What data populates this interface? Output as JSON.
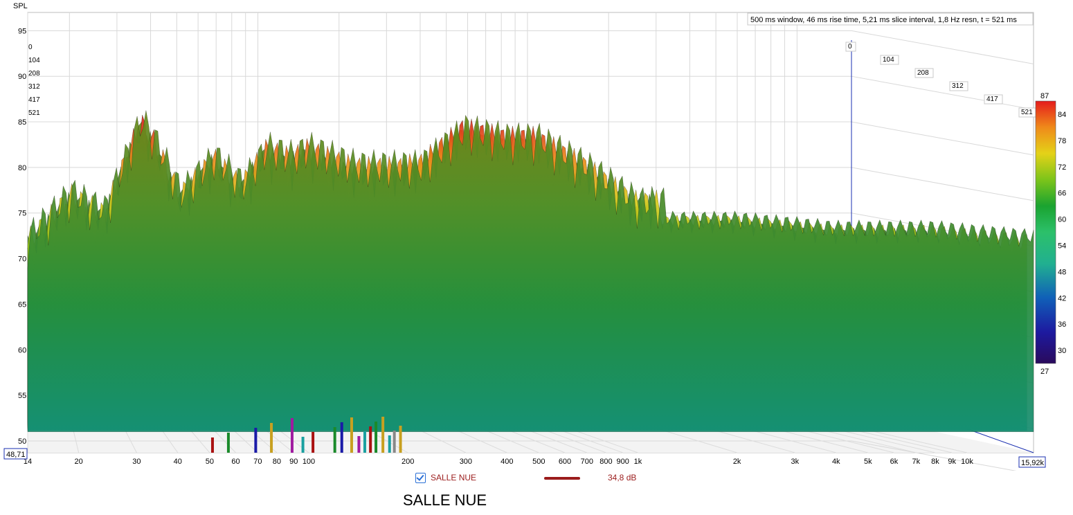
{
  "chart_data": {
    "type": "waterfall",
    "ylabel": "SPL",
    "info": "500 ms window, 46 ms rise time, 5,21 ms slice interval, 1,8 Hz resn, t = 521 ms",
    "y_ticks": [
      50,
      55,
      60,
      65,
      70,
      75,
      80,
      85,
      90,
      95
    ],
    "x_ticks": [
      {
        "f": 14,
        "label": "14"
      },
      {
        "f": 20,
        "label": "20"
      },
      {
        "f": 30,
        "label": "30"
      },
      {
        "f": 40,
        "label": "40"
      },
      {
        "f": 50,
        "label": "50"
      },
      {
        "f": 60,
        "label": "60"
      },
      {
        "f": 70,
        "label": "70"
      },
      {
        "f": 80,
        "label": "80"
      },
      {
        "f": 90,
        "label": "90"
      },
      {
        "f": 100,
        "label": "100"
      },
      {
        "f": 200,
        "label": "200"
      },
      {
        "f": 300,
        "label": "300"
      },
      {
        "f": 400,
        "label": "400"
      },
      {
        "f": 500,
        "label": "500"
      },
      {
        "f": 600,
        "label": "600"
      },
      {
        "f": 700,
        "label": "700"
      },
      {
        "f": 800,
        "label": "800"
      },
      {
        "f": 900,
        "label": "900"
      },
      {
        "f": 1000,
        "label": "1k"
      },
      {
        "f": 2000,
        "label": "2k"
      },
      {
        "f": 3000,
        "label": "3k"
      },
      {
        "f": 4000,
        "label": "4k"
      },
      {
        "f": 5000,
        "label": "5k"
      },
      {
        "f": 6000,
        "label": "6k"
      },
      {
        "f": 7000,
        "label": "7k"
      },
      {
        "f": 8000,
        "label": "8k"
      },
      {
        "f": 9000,
        "label": "9k"
      },
      {
        "f": 10000,
        "label": "10k"
      }
    ],
    "time_ticks_ms": [
      "0",
      "104",
      "208",
      "312",
      "417",
      "521"
    ],
    "y_corner_value": "48,71",
    "x_corner_value": "15,92k",
    "x_range_hz": [
      14,
      15920
    ],
    "y_range_db": [
      48.71,
      97
    ],
    "colorbar": {
      "min": 27,
      "max": 87,
      "ticks": [
        30,
        36,
        42,
        48,
        54,
        60,
        66,
        72,
        78,
        84
      ],
      "min_label": "27",
      "max_label": "87"
    },
    "series": [
      {
        "name": "SALLE NUE",
        "front_slice_peaks": [
          {
            "f": 14,
            "db": 75
          },
          {
            "f": 19,
            "db": 80
          },
          {
            "f": 24,
            "db": 78
          },
          {
            "f": 31,
            "db": 88
          },
          {
            "f": 34,
            "db": 86
          },
          {
            "f": 41,
            "db": 80
          },
          {
            "f": 52,
            "db": 84
          },
          {
            "f": 63,
            "db": 81
          },
          {
            "f": 75,
            "db": 85
          },
          {
            "f": 90,
            "db": 84
          },
          {
            "f": 100,
            "db": 85
          },
          {
            "f": 140,
            "db": 83
          },
          {
            "f": 220,
            "db": 83
          },
          {
            "f": 300,
            "db": 87
          },
          {
            "f": 400,
            "db": 86
          },
          {
            "f": 500,
            "db": 86
          },
          {
            "f": 700,
            "db": 83
          },
          {
            "f": 1000,
            "db": 79
          },
          {
            "f": 2000,
            "db": 79
          },
          {
            "f": 4000,
            "db": 78
          },
          {
            "f": 8000,
            "db": 78
          },
          {
            "f": 15920,
            "db": 77
          }
        ]
      }
    ],
    "legend": {
      "label": "SALLE NUE",
      "value": "34,8 dB"
    },
    "caption": "SALLE NUE"
  }
}
